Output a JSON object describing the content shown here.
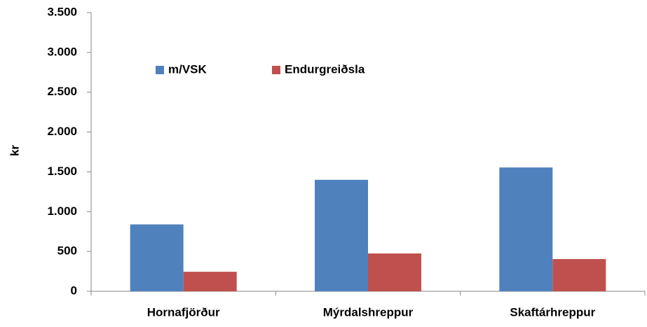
{
  "chart_data": {
    "type": "bar",
    "y_label": "kr",
    "categories": [
      "Hornafjörður",
      "Mýrdalshreppur",
      "Skaftárhreppur"
    ],
    "series": [
      {
        "name": "m/VSK",
        "color": "#4f81bd",
        "values": [
          840,
          1400,
          1555
        ]
      },
      {
        "name": "Endurgreiðsla",
        "color": "#c0504d",
        "values": [
          245,
          475,
          405
        ]
      }
    ],
    "ylim": [
      0,
      3500
    ],
    "yticks": [
      0,
      500,
      {
        "value": 1000,
        "label": "1.000"
      },
      {
        "value": 1500,
        "label": "1.500"
      },
      {
        "value": 2000,
        "label": "2.000"
      },
      {
        "value": 2500,
        "label": "2.500"
      },
      {
        "value": 3000,
        "label": "3.000"
      },
      {
        "value": 3500,
        "label": "3.500"
      }
    ],
    "grid": false,
    "legend": "top-left"
  }
}
